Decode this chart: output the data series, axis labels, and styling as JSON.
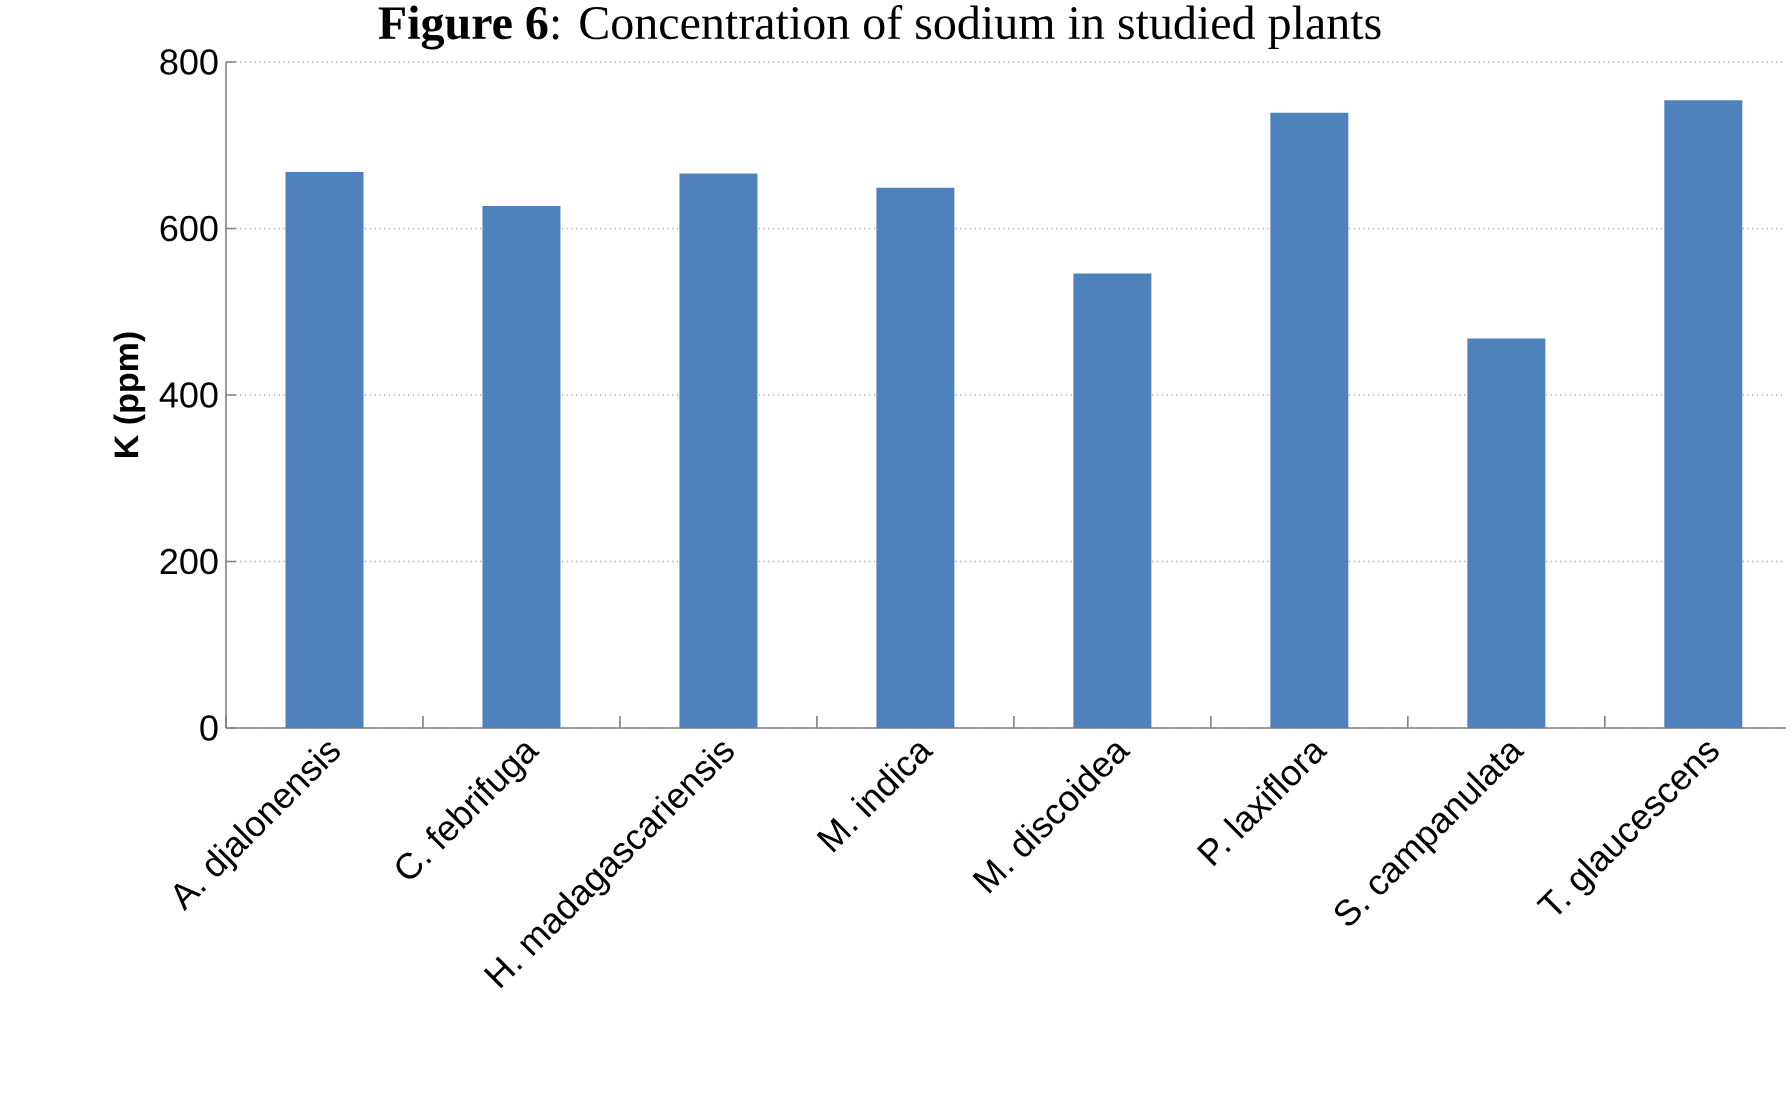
{
  "chart_data": {
    "type": "bar",
    "title": "**Figure 6**: Concentration of sodium in studied plants",
    "ylabel": "K (ppm)",
    "categories": [
      "A. djalonensis",
      "C. febrifuga",
      "H. madagascariensis",
      "M. indica",
      "M. discoidea",
      "P. laxiflora",
      "S. campanulata",
      "T. glaucescens"
    ],
    "values": [
      668,
      627,
      666,
      649,
      546,
      739,
      468,
      754
    ],
    "color": "#4f81bd",
    "ylim": [
      0,
      800
    ],
    "yticks": [
      0,
      200,
      400,
      600,
      800
    ],
    "grid": "y"
  }
}
